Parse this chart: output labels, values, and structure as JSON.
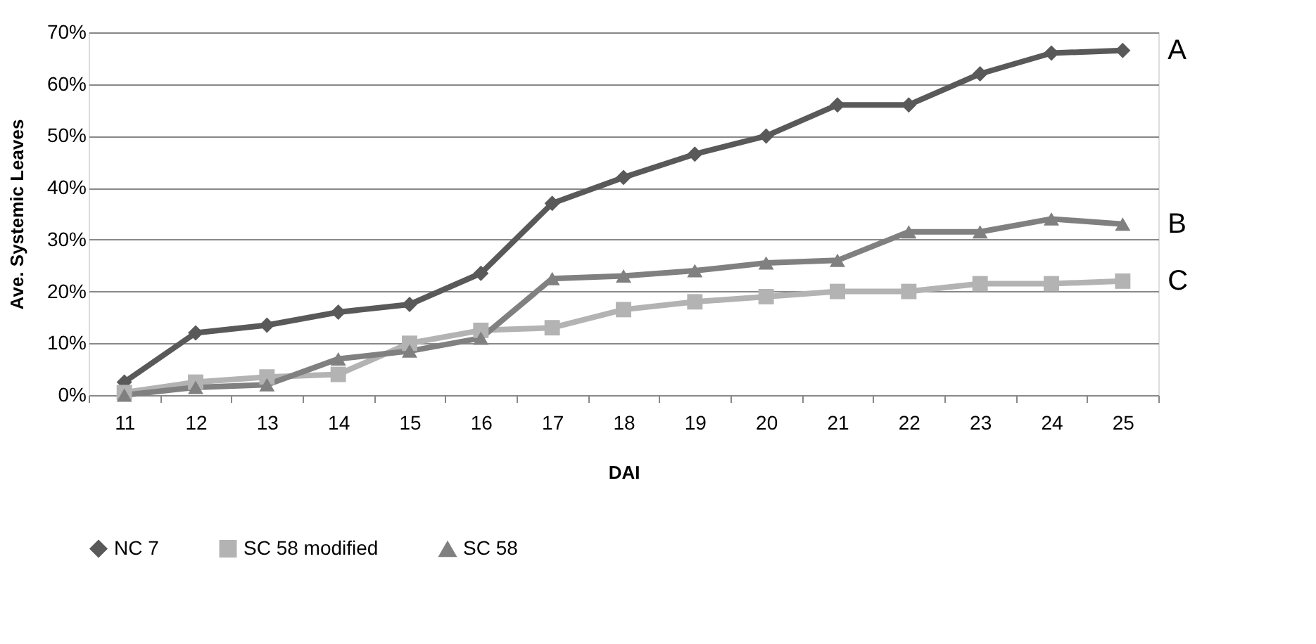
{
  "chart_data": {
    "type": "line",
    "xlabel": "DAI",
    "ylabel": "Ave.  Systemic Leaves",
    "categories": [
      "11",
      "12",
      "13",
      "14",
      "15",
      "16",
      "17",
      "18",
      "19",
      "20",
      "21",
      "22",
      "23",
      "24",
      "25"
    ],
    "series": [
      {
        "name": "NC 7",
        "color": "#595959",
        "marker": "diamond",
        "values": [
          2.5,
          12,
          13.5,
          16,
          17.5,
          23.5,
          37,
          42,
          46.5,
          50,
          56,
          56,
          62,
          66,
          66.5
        ]
      },
      {
        "name": "SC 58 modified",
        "color": "#b3b3b3",
        "marker": "square",
        "values": [
          0.5,
          2.5,
          3.5,
          4,
          10,
          12.5,
          13,
          16.5,
          18,
          19,
          20,
          20,
          21.5,
          21.5,
          22
        ]
      },
      {
        "name": "SC 58",
        "color": "#808080",
        "marker": "triangle",
        "values": [
          0,
          1.5,
          2,
          7,
          8.5,
          11,
          22.5,
          23,
          24,
          25.5,
          26,
          31.5,
          31.5,
          34,
          33
        ]
      }
    ],
    "ylim": [
      0,
      70
    ],
    "yticks": [
      {
        "value": 0,
        "label": "0%"
      },
      {
        "value": 10,
        "label": "10%"
      },
      {
        "value": 20,
        "label": "20%"
      },
      {
        "value": 30,
        "label": "30%"
      },
      {
        "value": 40,
        "label": "40%"
      },
      {
        "value": 50,
        "label": "50%"
      },
      {
        "value": 60,
        "label": "60%"
      },
      {
        "value": 70,
        "label": "70%"
      }
    ],
    "grid": "y",
    "legend": "bottom",
    "line_style": "solid",
    "annotations": [
      {
        "text": "A",
        "x": "25",
        "y": 66.5
      },
      {
        "text": "B",
        "x": "25",
        "y": 33
      },
      {
        "text": "C",
        "x": "25",
        "y": 22
      }
    ]
  }
}
